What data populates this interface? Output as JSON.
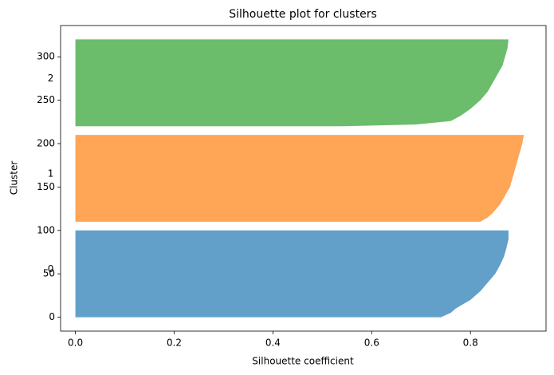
{
  "chart_data": {
    "type": "silhouette",
    "title": "Silhouette plot for clusters",
    "x_label": "Silhouette coefficient",
    "y_label": "Cluster",
    "xlim": [
      -0.03,
      0.953
    ],
    "ylim": [
      -16,
      336
    ],
    "xticks": [
      {
        "value": 0,
        "label": "0.0"
      },
      {
        "value": 0.2,
        "label": "0.2"
      },
      {
        "value": 0.4,
        "label": "0.4"
      },
      {
        "value": 0.6,
        "label": "0.6"
      },
      {
        "value": 0.8,
        "label": "0.8"
      }
    ],
    "yticks": [
      0,
      50,
      100,
      150,
      200,
      250,
      300
    ],
    "alpha": 0.7,
    "series": [
      {
        "name": "0",
        "color": "#1f77b4",
        "label_x": -0.05,
        "label_y": 55,
        "y": [
          0,
          5,
          10,
          20,
          30,
          40,
          50,
          60,
          70,
          80,
          90,
          100
        ],
        "values": [
          0.74,
          0.76,
          0.77,
          0.8,
          0.82,
          0.835,
          0.85,
          0.86,
          0.868,
          0.873,
          0.877,
          0.877
        ]
      },
      {
        "name": "1",
        "color": "#ff7f0e",
        "label_x": -0.05,
        "label_y": 165,
        "y": [
          110,
          115,
          120,
          130,
          140,
          150,
          160,
          170,
          180,
          190,
          200,
          210
        ],
        "values": [
          0.82,
          0.835,
          0.845,
          0.86,
          0.87,
          0.88,
          0.885,
          0.89,
          0.895,
          0.9,
          0.905,
          0.908
        ]
      },
      {
        "name": "2",
        "color": "#2ca02c",
        "label_x": -0.05,
        "label_y": 275,
        "y": [
          220,
          222,
          226,
          232,
          240,
          250,
          260,
          270,
          280,
          290,
          300,
          310,
          320
        ],
        "values": [
          0.54,
          0.69,
          0.76,
          0.78,
          0.8,
          0.82,
          0.835,
          0.845,
          0.855,
          0.865,
          0.87,
          0.875,
          0.877
        ]
      }
    ]
  }
}
